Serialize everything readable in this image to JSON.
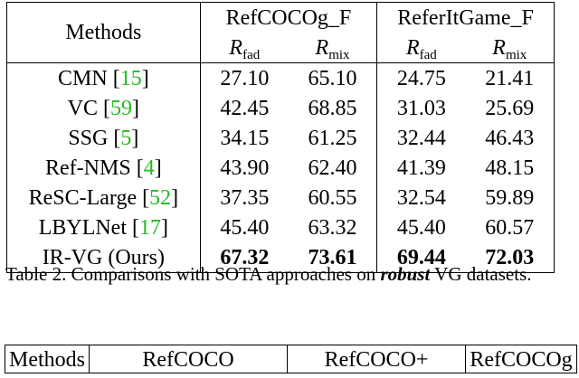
{
  "table2": {
    "header": {
      "methods": "Methods",
      "group1": "RefCOCOg_F",
      "group2": "ReferItGame_F",
      "metric_fad": "fad",
      "metric_mix": "mix",
      "metric_symbol": "R"
    },
    "rows": [
      {
        "name": "CMN ",
        "ref": "15",
        "v": [
          "27.10",
          "65.10",
          "24.75",
          "21.41"
        ],
        "bold": false
      },
      {
        "name": "VC ",
        "ref": "59",
        "v": [
          "42.45",
          "68.85",
          "31.03",
          "25.69"
        ],
        "bold": false
      },
      {
        "name": "SSG ",
        "ref": "5",
        "v": [
          "34.15",
          "61.25",
          "32.44",
          "46.43"
        ],
        "bold": false
      },
      {
        "name": "Ref-NMS ",
        "ref": "4",
        "v": [
          "43.90",
          "62.40",
          "41.39",
          "48.15"
        ],
        "bold": false
      },
      {
        "name": "ReSC-Large ",
        "ref": "52",
        "v": [
          "37.35",
          "60.55",
          "32.54",
          "59.89"
        ],
        "bold": false
      },
      {
        "name": "LBYLNet ",
        "ref": "17",
        "v": [
          "45.40",
          "63.32",
          "45.40",
          "60.57"
        ],
        "bold": false
      },
      {
        "name": "IR-VG (Ours)",
        "ref": "",
        "v": [
          "67.32",
          "73.61",
          "69.44",
          "72.03"
        ],
        "bold": true
      }
    ]
  },
  "caption": {
    "prefix": "Table 2. Comparisons with SOTA approaches on ",
    "emph": "robust",
    "suffix": " VG datasets."
  },
  "table3": {
    "methods": "Methods",
    "col1": "RefCOCO",
    "col2": "RefCOCO+",
    "col3": "RefCOCOg"
  }
}
